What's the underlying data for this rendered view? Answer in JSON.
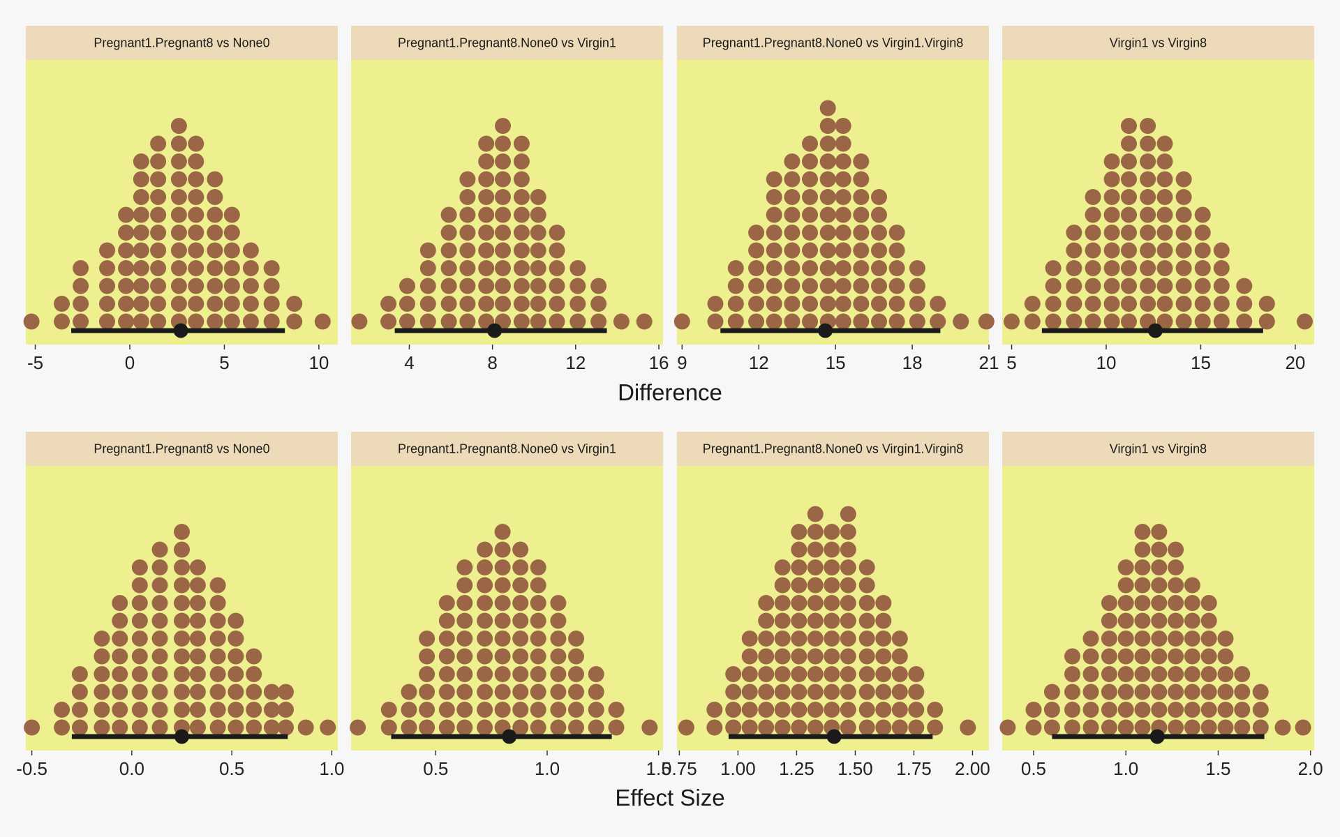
{
  "colors": {
    "background": "#f7f7f7",
    "panel": "#eef08f",
    "strip": "#ecdab8",
    "dot": "#9a6646",
    "interval": "#1a1a1a"
  },
  "rows": [
    {
      "xlabel": "Difference"
    },
    {
      "xlabel": "Effect Size"
    }
  ],
  "chart_data": [
    {
      "type": "dotplot",
      "title": "Pregnant1.Pregnant8 vs None0",
      "xlabel": "Difference",
      "xlim": [
        -5.5,
        11
      ],
      "ticks": [
        "-5",
        "0",
        "5",
        "10"
      ],
      "bins": [
        [
          -5.2,
          1
        ],
        [
          -3.6,
          2
        ],
        [
          -2.6,
          4
        ],
        [
          -1.2,
          5
        ],
        [
          -0.2,
          7
        ],
        [
          0.6,
          10
        ],
        [
          1.5,
          11
        ],
        [
          2.6,
          12
        ],
        [
          3.5,
          11
        ],
        [
          4.5,
          9
        ],
        [
          5.4,
          7
        ],
        [
          6.4,
          5
        ],
        [
          7.5,
          4
        ],
        [
          8.7,
          2
        ],
        [
          10.2,
          1
        ]
      ],
      "point_estimate": 2.7,
      "interval": [
        -3.1,
        8.2
      ]
    },
    {
      "type": "dotplot",
      "title": "Pregnant1.Pregnant8.None0 vs Virgin1",
      "xlabel": "Difference",
      "xlim": [
        1.2,
        16.2
      ],
      "ticks": [
        "4",
        "8",
        "12",
        "16"
      ],
      "bins": [
        [
          1.6,
          1
        ],
        [
          3,
          2
        ],
        [
          3.9,
          3
        ],
        [
          4.9,
          5
        ],
        [
          5.9,
          7
        ],
        [
          6.8,
          9
        ],
        [
          7.7,
          11
        ],
        [
          8.5,
          12
        ],
        [
          9.4,
          11
        ],
        [
          10.2,
          8
        ],
        [
          11.1,
          6
        ],
        [
          12.1,
          4
        ],
        [
          13.1,
          3
        ],
        [
          14.2,
          1
        ],
        [
          15.3,
          1
        ]
      ],
      "point_estimate": 8.1,
      "interval": [
        3.3,
        13.5
      ]
    },
    {
      "type": "dotplot",
      "title": "Pregnant1.Pregnant8.None0 vs Virgin1.Virgin8",
      "xlabel": "Difference",
      "xlim": [
        8.8,
        21
      ],
      "ticks": [
        "9",
        "12",
        "15",
        "18",
        "21"
      ],
      "bins": [
        [
          9,
          1
        ],
        [
          10.3,
          2
        ],
        [
          11.1,
          4
        ],
        [
          11.9,
          6
        ],
        [
          12.6,
          9
        ],
        [
          13.3,
          10
        ],
        [
          14,
          11
        ],
        [
          14.7,
          13
        ],
        [
          15.3,
          12
        ],
        [
          16,
          10
        ],
        [
          16.7,
          8
        ],
        [
          17.4,
          6
        ],
        [
          18.2,
          4
        ],
        [
          19,
          2
        ],
        [
          19.9,
          1
        ],
        [
          20.9,
          1
        ]
      ],
      "point_estimate": 14.6,
      "interval": [
        10.5,
        19.1
      ]
    },
    {
      "type": "dotplot",
      "title": "Virgin1 vs Virgin8",
      "xlabel": "Difference",
      "xlim": [
        4.5,
        21
      ],
      "ticks": [
        "5",
        "10",
        "15",
        "20"
      ],
      "bins": [
        [
          5,
          1
        ],
        [
          6.1,
          2
        ],
        [
          7.2,
          4
        ],
        [
          8.3,
          6
        ],
        [
          9.3,
          8
        ],
        [
          10.3,
          10
        ],
        [
          11.2,
          12
        ],
        [
          12.2,
          12
        ],
        [
          13.1,
          11
        ],
        [
          14.1,
          9
        ],
        [
          15.1,
          7
        ],
        [
          16.1,
          5
        ],
        [
          17.3,
          3
        ],
        [
          18.5,
          2
        ],
        [
          20.5,
          1
        ]
      ],
      "point_estimate": 12.6,
      "interval": [
        6.6,
        18.3
      ]
    },
    {
      "type": "dotplot",
      "title": "Pregnant1.Pregnant8 vs None0",
      "xlabel": "Effect Size",
      "xlim": [
        -0.53,
        1.03
      ],
      "ticks": [
        "-0.5",
        "0.0",
        "0.5",
        "1.0"
      ],
      "bins": [
        [
          -0.5,
          1
        ],
        [
          -0.35,
          2
        ],
        [
          -0.26,
          4
        ],
        [
          -0.15,
          6
        ],
        [
          -0.06,
          8
        ],
        [
          0.04,
          10
        ],
        [
          0.14,
          11
        ],
        [
          0.25,
          12
        ],
        [
          0.33,
          10
        ],
        [
          0.43,
          9
        ],
        [
          0.52,
          7
        ],
        [
          0.61,
          5
        ],
        [
          0.7,
          3
        ],
        [
          0.77,
          3
        ],
        [
          0.87,
          1
        ],
        [
          0.98,
          1
        ]
      ],
      "point_estimate": 0.25,
      "interval": [
        -0.3,
        0.78
      ]
    },
    {
      "type": "dotplot",
      "title": "Pregnant1.Pregnant8.None0 vs Virgin1",
      "xlabel": "Effect Size",
      "xlim": [
        0.12,
        1.52
      ],
      "ticks": [
        "0.5",
        "1.0",
        "1.5"
      ],
      "bins": [
        [
          0.15,
          1
        ],
        [
          0.29,
          2
        ],
        [
          0.38,
          3
        ],
        [
          0.46,
          6
        ],
        [
          0.55,
          8
        ],
        [
          0.63,
          10
        ],
        [
          0.72,
          11
        ],
        [
          0.8,
          12
        ],
        [
          0.88,
          11
        ],
        [
          0.96,
          10
        ],
        [
          1.05,
          8
        ],
        [
          1.13,
          6
        ],
        [
          1.22,
          4
        ],
        [
          1.31,
          2
        ],
        [
          1.46,
          1
        ]
      ],
      "point_estimate": 0.83,
      "interval": [
        0.3,
        1.29
      ]
    },
    {
      "type": "dotplot",
      "title": "Pregnant1.Pregnant8.None0 vs Virgin1.Virgin8",
      "xlabel": "Effect Size",
      "xlim": [
        0.74,
        2.07
      ],
      "ticks": [
        "0.75",
        "1.00",
        "1.25",
        "1.50",
        "1.75",
        "2.00"
      ],
      "bins": [
        [
          0.78,
          1
        ],
        [
          0.9,
          2
        ],
        [
          0.98,
          4
        ],
        [
          1.05,
          6
        ],
        [
          1.12,
          8
        ],
        [
          1.19,
          10
        ],
        [
          1.26,
          12
        ],
        [
          1.33,
          13
        ],
        [
          1.4,
          12
        ],
        [
          1.47,
          13
        ],
        [
          1.55,
          10
        ],
        [
          1.62,
          8
        ],
        [
          1.69,
          6
        ],
        [
          1.76,
          4
        ],
        [
          1.84,
          2
        ],
        [
          1.98,
          1
        ]
      ],
      "point_estimate": 1.41,
      "interval": [
        0.96,
        1.83
      ]
    },
    {
      "type": "dotplot",
      "title": "Virgin1 vs Virgin8",
      "xlabel": "Effect Size",
      "xlim": [
        0.33,
        2.02
      ],
      "ticks": [
        "0.5",
        "1.0",
        "1.5",
        "2.0"
      ],
      "bins": [
        [
          0.36,
          1
        ],
        [
          0.5,
          2
        ],
        [
          0.6,
          3
        ],
        [
          0.71,
          5
        ],
        [
          0.81,
          6
        ],
        [
          0.91,
          8
        ],
        [
          1.0,
          10
        ],
        [
          1.09,
          12
        ],
        [
          1.18,
          12
        ],
        [
          1.27,
          11
        ],
        [
          1.36,
          9
        ],
        [
          1.45,
          8
        ],
        [
          1.54,
          6
        ],
        [
          1.63,
          4
        ],
        [
          1.73,
          3
        ],
        [
          1.85,
          1
        ],
        [
          1.96,
          1
        ]
      ],
      "point_estimate": 1.17,
      "interval": [
        0.6,
        1.75
      ]
    }
  ]
}
